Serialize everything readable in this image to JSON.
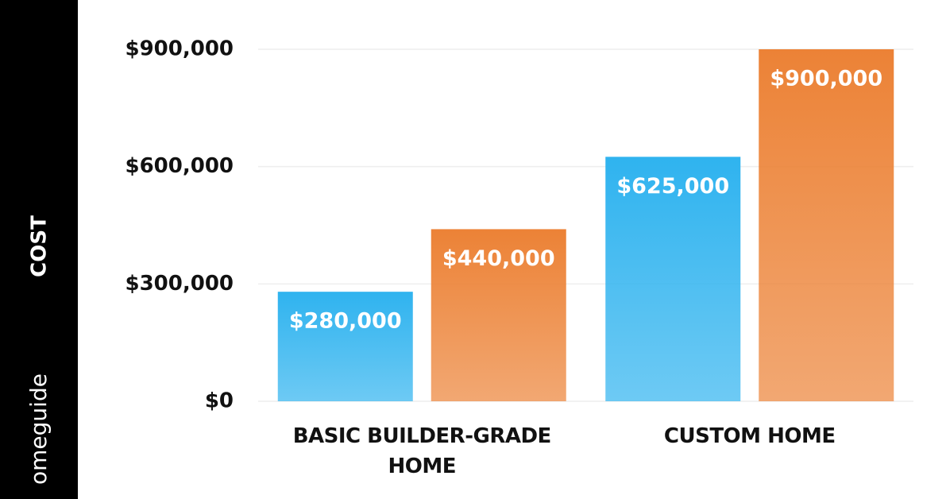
{
  "chart_data": {
    "type": "bar",
    "ylabel": "COST",
    "brand": "omeguide",
    "categories": [
      "BASIC BUILDER-GRADE HOME",
      "CUSTOM HOME"
    ],
    "series": [
      {
        "color": "#2fb3ef",
        "values": [
          280000,
          625000
        ],
        "value_labels": [
          "$280,000",
          "$625,000"
        ]
      },
      {
        "color": "#ec8236",
        "values": [
          440000,
          900000
        ],
        "value_labels": [
          "$440,000",
          "$900,000"
        ]
      }
    ],
    "ylim": [
      0,
      900000
    ],
    "yticks": [
      {
        "value": 0,
        "label": "$0"
      },
      {
        "value": 300000,
        "label": "$300,000"
      },
      {
        "value": 600000,
        "label": "$600,000"
      },
      {
        "value": 900000,
        "label": "$900,000"
      }
    ],
    "grid": true
  }
}
